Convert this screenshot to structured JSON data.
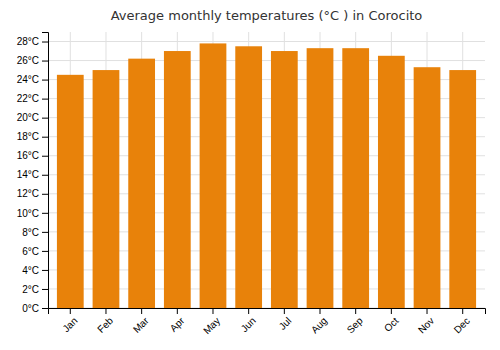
{
  "chart_data": {
    "type": "bar",
    "title": "Average monthly temperatures (°C ) in Corocito",
    "categories": [
      "Jan",
      "Feb",
      "Mar",
      "Apr",
      "May",
      "Jun",
      "Jul",
      "Aug",
      "Sep",
      "Oct",
      "Nov",
      "Dec"
    ],
    "values": [
      24.5,
      25.0,
      26.2,
      27.0,
      27.8,
      27.5,
      27.0,
      27.3,
      27.3,
      26.5,
      25.3,
      25.0
    ],
    "color": "#E8820A",
    "ylim": [
      0,
      29
    ],
    "yticks": [
      {
        "value": 0,
        "label": "0°C"
      },
      {
        "value": 2,
        "label": "2°C"
      },
      {
        "value": 4,
        "label": "4°C"
      },
      {
        "value": 6,
        "label": "6°C"
      },
      {
        "value": 8,
        "label": "8°C"
      },
      {
        "value": 10,
        "label": "10°C"
      },
      {
        "value": 12,
        "label": "12°C"
      },
      {
        "value": 14,
        "label": "14°C"
      },
      {
        "value": 16,
        "label": "16°C"
      },
      {
        "value": 18,
        "label": "18°C"
      },
      {
        "value": 20,
        "label": "20°C"
      },
      {
        "value": 22,
        "label": "22°C"
      },
      {
        "value": 24,
        "label": "24°C"
      },
      {
        "value": 26,
        "label": "26°C"
      },
      {
        "value": 28,
        "label": "28°C"
      }
    ],
    "grid": true
  }
}
